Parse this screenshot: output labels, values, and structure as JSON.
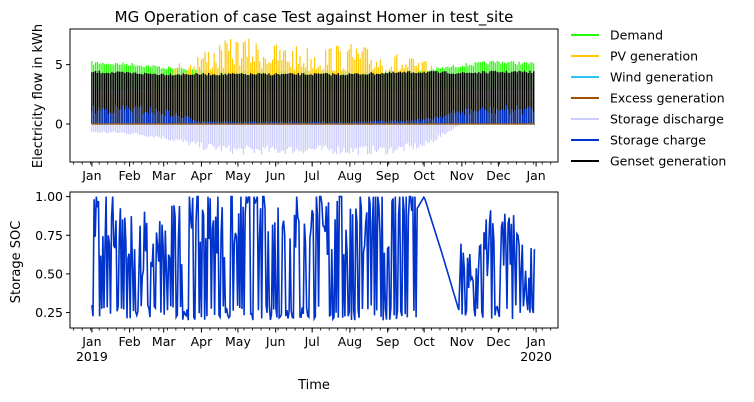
{
  "figure": {
    "title": "MG Operation of case Test against Homer in test_site"
  },
  "chart_data": [
    {
      "type": "line",
      "subplot": "top",
      "title": "MG Operation of case Test against Homer in test_site",
      "xlabel": "",
      "ylabel": "Electricity flow in kWh",
      "ylim": [
        -3.2,
        8.0
      ],
      "yticks": [
        0,
        5
      ],
      "xlim": [
        "2018-12-14",
        "2020-01-19"
      ],
      "xtick_labels": [
        "Jan",
        "Feb",
        "Mar",
        "Apr",
        "May",
        "Jun",
        "Jul",
        "Aug",
        "Sep",
        "Oct",
        "Nov",
        "Dec",
        "Jan"
      ],
      "grid": false,
      "legend": "outside-right",
      "series": [
        {
          "name": "Demand",
          "color": "#22ff00",
          "x": [
            "2019-01-01",
            "2019-02-01",
            "2019-03-01",
            "2019-04-01",
            "2019-05-01",
            "2019-06-01",
            "2019-07-01",
            "2019-08-01",
            "2019-09-01",
            "2019-10-01",
            "2019-11-01",
            "2019-12-01",
            "2019-12-31"
          ],
          "values": [
            5.3,
            5.2,
            4.9,
            4.6,
            4.5,
            4.5,
            4.5,
            4.5,
            4.5,
            4.6,
            5.1,
            5.4,
            5.2
          ]
        },
        {
          "name": "PV generation",
          "color": "#ffc800",
          "x": [
            "2019-01-01",
            "2019-02-01",
            "2019-03-01",
            "2019-04-01",
            "2019-05-01",
            "2019-06-01",
            "2019-07-01",
            "2019-08-01",
            "2019-09-01",
            "2019-10-01",
            "2019-11-01",
            "2019-12-01",
            "2019-12-31"
          ],
          "values": [
            2.5,
            3.0,
            4.5,
            6.4,
            7.4,
            6.8,
            6.6,
            6.8,
            6.2,
            5.4,
            3.3,
            2.5,
            2.4
          ]
        },
        {
          "name": "Wind generation",
          "color": "#29c6f5",
          "x": [
            "2019-01-01",
            "2019-12-31"
          ],
          "values": [
            0,
            0
          ]
        },
        {
          "name": "Excess generation",
          "color": "#a05000",
          "x": [
            "2019-01-01",
            "2019-12-31"
          ],
          "values": [
            0,
            0
          ]
        },
        {
          "name": "Storage discharge",
          "color": "#ccccff",
          "x": [
            "2019-01-01",
            "2019-02-01",
            "2019-03-01",
            "2019-04-01",
            "2019-05-01",
            "2019-06-01",
            "2019-07-01",
            "2019-08-01",
            "2019-09-01",
            "2019-10-01",
            "2019-11-01",
            "2019-12-01",
            "2019-12-31"
          ],
          "values": [
            -0.8,
            -0.9,
            -1.3,
            -2.2,
            -2.6,
            -2.6,
            -2.5,
            -2.6,
            -2.6,
            -2.1,
            0,
            0,
            0
          ]
        },
        {
          "name": "Storage charge",
          "color": "#0033cc",
          "x": [
            "2019-01-01",
            "2019-02-01",
            "2019-03-01",
            "2019-04-01",
            "2019-05-01",
            "2019-06-01",
            "2019-07-01",
            "2019-08-01",
            "2019-09-01",
            "2019-10-01",
            "2019-11-01",
            "2019-12-01",
            "2019-12-31"
          ],
          "values": [
            1.6,
            1.7,
            1.3,
            0.3,
            0.2,
            0.2,
            0.2,
            0.2,
            0.3,
            0.5,
            1.4,
            1.6,
            1.6
          ]
        },
        {
          "name": "Genset generation",
          "color": "#000000",
          "x": [
            "2019-01-01",
            "2019-02-01",
            "2019-03-01",
            "2019-04-01",
            "2019-05-01",
            "2019-06-01",
            "2019-07-01",
            "2019-08-01",
            "2019-09-01",
            "2019-10-01",
            "2019-11-01",
            "2019-12-01",
            "2019-12-31"
          ],
          "values": [
            4.5,
            4.4,
            4.3,
            4.3,
            4.3,
            4.3,
            4.3,
            4.3,
            4.4,
            4.5,
            4.4,
            4.5,
            4.5
          ]
        }
      ]
    },
    {
      "type": "line",
      "subplot": "bottom",
      "xlabel": "Time",
      "ylabel": "Storage SOC",
      "ylim": [
        0.15,
        1.03
      ],
      "yticks": [
        0.25,
        0.5,
        0.75,
        1.0
      ],
      "ytick_labels": [
        "0.25",
        "0.50",
        "0.75",
        "1.00"
      ],
      "xlim": [
        "2018-12-14",
        "2020-01-19"
      ],
      "xtick_labels": [
        "Jan",
        "Feb",
        "Mar",
        "Apr",
        "May",
        "Jun",
        "Jul",
        "Aug",
        "Sep",
        "Oct",
        "Nov",
        "Dec",
        "Jan"
      ],
      "xtick_year_labels": [
        "2019",
        "2020"
      ],
      "grid": false,
      "series": [
        {
          "name": "",
          "color": "#0033cc",
          "x": [
            "2019-01-01",
            "2019-02-01",
            "2019-03-01",
            "2019-04-01",
            "2019-05-01",
            "2019-06-01",
            "2019-07-01",
            "2019-08-01",
            "2019-09-01",
            "2019-10-01",
            "2019-10-15",
            "2019-11-01",
            "2019-12-01",
            "2019-12-31"
          ],
          "values": [
            0.6,
            0.5,
            0.45,
            0.6,
            0.6,
            0.6,
            0.6,
            0.6,
            0.6,
            1.0,
            0.65,
            0.2,
            0.55,
            0.2
          ]
        }
      ]
    }
  ]
}
